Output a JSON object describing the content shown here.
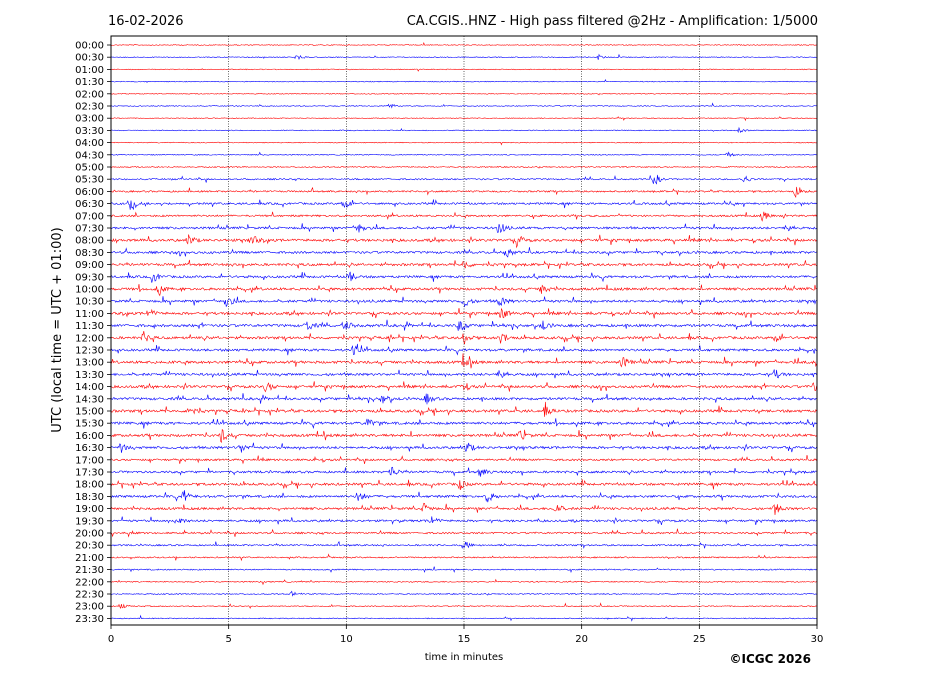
{
  "chart_data": {
    "type": "line",
    "date": "16-02-2026",
    "title": "CA.CGIS..HNZ - High pass filtered @2Hz - Amplification: 1/5000",
    "xlabel": "time in minutes",
    "ylabel": "UTC (local time = UTC + 01:00)",
    "copyright": "©ICGC 2026",
    "xlim": [
      0,
      30
    ],
    "x_ticks": [
      "0",
      "5",
      "10",
      "15",
      "20",
      "25",
      "30"
    ],
    "grid": "vertical dotted lines at every 5 minutes",
    "trace_colors": [
      "#ff0000",
      "#0000ff"
    ],
    "rows": [
      "00:00",
      "00:30",
      "01:00",
      "01:30",
      "02:00",
      "02:30",
      "03:00",
      "03:30",
      "04:00",
      "04:30",
      "05:00",
      "05:30",
      "06:00",
      "06:30",
      "07:00",
      "07:30",
      "08:00",
      "08:30",
      "09:00",
      "09:30",
      "10:00",
      "10:30",
      "11:00",
      "11:30",
      "12:00",
      "12:30",
      "13:00",
      "13:30",
      "14:00",
      "14:30",
      "15:00",
      "15:30",
      "16:00",
      "16:30",
      "17:00",
      "17:30",
      "18:00",
      "18:30",
      "19:00",
      "19:30",
      "20:00",
      "20:30",
      "21:00",
      "21:30",
      "22:00",
      "22:30",
      "23:00",
      "23:30"
    ],
    "activity_level": [
      0.05,
      0.08,
      0.05,
      0.05,
      0.05,
      0.08,
      0.05,
      0.07,
      0.08,
      0.1,
      0.2,
      0.35,
      0.45,
      0.6,
      0.55,
      0.7,
      0.85,
      0.75,
      0.8,
      0.75,
      0.85,
      0.8,
      0.85,
      0.9,
      0.85,
      0.8,
      0.9,
      0.8,
      0.85,
      0.85,
      0.9,
      0.85,
      0.9,
      0.8,
      0.6,
      0.7,
      0.8,
      0.75,
      0.75,
      0.65,
      0.5,
      0.4,
      0.3,
      0.25,
      0.2,
      0.18,
      0.15,
      0.12
    ],
    "events": [
      {
        "row": "00:30",
        "x": 7.9,
        "amp": 0.35
      },
      {
        "row": "00:30",
        "x": 20.7,
        "amp": 0.3
      },
      {
        "row": "02:30",
        "x": 11.8,
        "amp": 0.4
      },
      {
        "row": "03:30",
        "x": 26.7,
        "amp": 0.3
      },
      {
        "row": "04:30",
        "x": 26.2,
        "amp": 0.3
      },
      {
        "row": "05:30",
        "x": 23.1,
        "amp": 0.8
      },
      {
        "row": "05:30",
        "x": 26.9,
        "amp": 0.5
      },
      {
        "row": "06:00",
        "x": 29.1,
        "amp": 0.6
      },
      {
        "row": "06:30",
        "x": 0.8,
        "amp": 0.7
      },
      {
        "row": "06:30",
        "x": 9.9,
        "amp": 0.9
      },
      {
        "row": "07:00",
        "x": 27.7,
        "amp": 0.6
      },
      {
        "row": "07:30",
        "x": 10.5,
        "amp": 0.8
      },
      {
        "row": "07:30",
        "x": 16.5,
        "amp": 0.8
      },
      {
        "row": "07:30",
        "x": 28.7,
        "amp": 0.6
      },
      {
        "row": "08:00",
        "x": 3.3,
        "amp": 0.7
      },
      {
        "row": "08:00",
        "x": 6.0,
        "amp": 0.6
      },
      {
        "row": "08:00",
        "x": 17.3,
        "amp": 0.6
      },
      {
        "row": "08:30",
        "x": 16.8,
        "amp": 0.6
      },
      {
        "row": "09:00",
        "x": 15.0,
        "amp": 0.6
      },
      {
        "row": "09:30",
        "x": 1.8,
        "amp": 0.7
      },
      {
        "row": "09:30",
        "x": 10.1,
        "amp": 0.8
      },
      {
        "row": "10:00",
        "x": 2.0,
        "amp": 0.6
      },
      {
        "row": "10:00",
        "x": 18.3,
        "amp": 0.6
      },
      {
        "row": "10:30",
        "x": 4.9,
        "amp": 0.8
      },
      {
        "row": "10:30",
        "x": 15.0,
        "amp": 0.7
      },
      {
        "row": "10:30",
        "x": 16.5,
        "amp": 0.7
      },
      {
        "row": "11:00",
        "x": 1.6,
        "amp": 0.6
      },
      {
        "row": "11:00",
        "x": 16.6,
        "amp": 0.8
      },
      {
        "row": "11:30",
        "x": 8.3,
        "amp": 0.8
      },
      {
        "row": "11:30",
        "x": 9.9,
        "amp": 0.8
      },
      {
        "row": "11:30",
        "x": 14.8,
        "amp": 0.8
      },
      {
        "row": "11:30",
        "x": 18.3,
        "amp": 0.6
      },
      {
        "row": "12:00",
        "x": 1.4,
        "amp": 0.7
      },
      {
        "row": "12:00",
        "x": 15.0,
        "amp": 0.7
      },
      {
        "row": "12:00",
        "x": 16.6,
        "amp": 0.8
      },
      {
        "row": "12:00",
        "x": 28.2,
        "amp": 0.7
      },
      {
        "row": "12:30",
        "x": 10.3,
        "amp": 0.6
      },
      {
        "row": "13:00",
        "x": 15.0,
        "amp": 0.8
      },
      {
        "row": "13:00",
        "x": 21.7,
        "amp": 0.8
      },
      {
        "row": "13:00",
        "x": 29.9,
        "amp": 0.7
      },
      {
        "row": "13:30",
        "x": 16.5,
        "amp": 0.8
      },
      {
        "row": "13:30",
        "x": 28.2,
        "amp": 0.6
      },
      {
        "row": "14:00",
        "x": 6.6,
        "amp": 0.7
      },
      {
        "row": "14:00",
        "x": 15.0,
        "amp": 0.5
      },
      {
        "row": "14:00",
        "x": 29.9,
        "amp": 0.8
      },
      {
        "row": "14:30",
        "x": 11.5,
        "amp": 0.6
      },
      {
        "row": "14:30",
        "x": 13.4,
        "amp": 0.6
      },
      {
        "row": "15:00",
        "x": 3.3,
        "amp": 0.7
      },
      {
        "row": "15:00",
        "x": 18.4,
        "amp": 0.7
      },
      {
        "row": "15:30",
        "x": 10.9,
        "amp": 0.6
      },
      {
        "row": "16:00",
        "x": 4.7,
        "amp": 0.8
      },
      {
        "row": "16:00",
        "x": 17.4,
        "amp": 0.6
      },
      {
        "row": "16:30",
        "x": 0.4,
        "amp": 0.6
      },
      {
        "row": "16:30",
        "x": 5.5,
        "amp": 0.6
      },
      {
        "row": "16:30",
        "x": 15.1,
        "amp": 0.8
      },
      {
        "row": "17:30",
        "x": 11.9,
        "amp": 0.8
      },
      {
        "row": "17:30",
        "x": 15.7,
        "amp": 0.6
      },
      {
        "row": "18:00",
        "x": 14.8,
        "amp": 0.7
      },
      {
        "row": "18:30",
        "x": 3.1,
        "amp": 0.7
      },
      {
        "row": "18:30",
        "x": 10.5,
        "amp": 0.8
      },
      {
        "row": "18:30",
        "x": 16.0,
        "amp": 0.7
      },
      {
        "row": "19:00",
        "x": 13.3,
        "amp": 0.7
      },
      {
        "row": "19:00",
        "x": 18.9,
        "amp": 0.7
      },
      {
        "row": "19:00",
        "x": 28.2,
        "amp": 0.8
      },
      {
        "row": "19:30",
        "x": 2.8,
        "amp": 0.6
      },
      {
        "row": "19:30",
        "x": 13.6,
        "amp": 0.6
      },
      {
        "row": "20:30",
        "x": 15.0,
        "amp": 0.6
      },
      {
        "row": "22:30",
        "x": 7.7,
        "amp": 0.3
      },
      {
        "row": "23:00",
        "x": 0.4,
        "amp": 0.35
      }
    ]
  }
}
